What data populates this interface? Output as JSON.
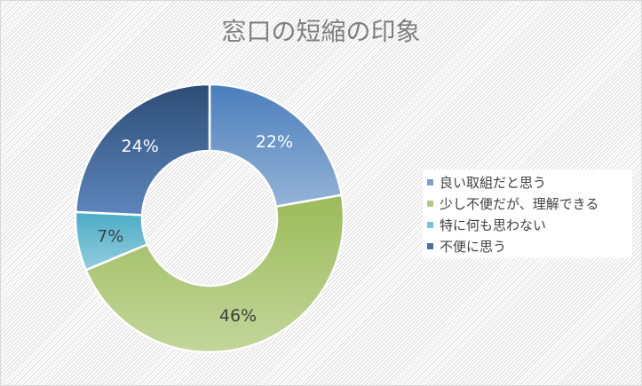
{
  "chart_data": {
    "type": "pie",
    "subtype": "donut",
    "title": "窓口の短縮の印象",
    "categories": [
      "良い取組だと思う",
      "少し不便だが、理解できる",
      "特に何も思わない",
      "不便に思う"
    ],
    "values": [
      22,
      46,
      7,
      24
    ],
    "labels": [
      "22%",
      "46%",
      "7%",
      "24%"
    ],
    "colors": [
      "#4f81bd",
      "#9bbb59",
      "#4bacc6",
      "#2c4d75"
    ],
    "legend_position": "right",
    "units": "%"
  },
  "legend": {
    "items": [
      {
        "label": "良い取組だと思う",
        "color": "#7e9fcf"
      },
      {
        "label": "少し不便だが、理解できる",
        "color": "#b4c983"
      },
      {
        "label": "特に何も思わない",
        "color": "#78c3d6"
      },
      {
        "label": "不便に思う",
        "color": "#4a6fa0"
      }
    ]
  }
}
